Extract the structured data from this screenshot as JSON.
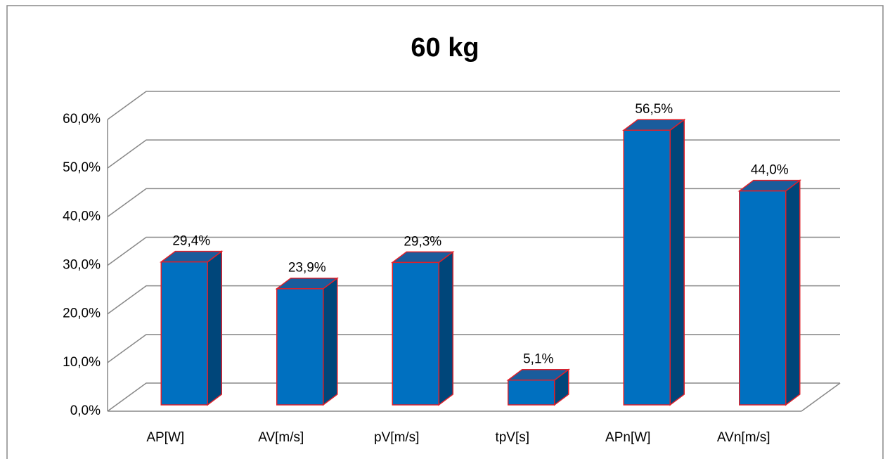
{
  "chart_data": {
    "type": "bar",
    "title": "60 kg",
    "categories": [
      "AP[W]",
      "AV[m/s]",
      "pV[m/s]",
      "tpV[s]",
      "APn[W]",
      "AVn[m/s]"
    ],
    "values": [
      29.4,
      23.9,
      29.3,
      5.1,
      56.5,
      44.0
    ],
    "value_labels": [
      "29,4%",
      "23,9%",
      "29,3%",
      "5,1%",
      "56,5%",
      "44,0%"
    ],
    "color": "#0070c0",
    "ylim": [
      0,
      60
    ],
    "yticks": [
      {
        "value": 0,
        "label": "0,0%"
      },
      {
        "value": 10,
        "label": "10,0%"
      },
      {
        "value": 20,
        "label": "20,0%"
      },
      {
        "value": 30,
        "label": "30,0%"
      },
      {
        "value": 40,
        "label": "40,0%"
      },
      {
        "value": 50,
        "label": "50,0%"
      },
      {
        "value": 60,
        "label": "60,0%"
      }
    ],
    "grid": true
  }
}
